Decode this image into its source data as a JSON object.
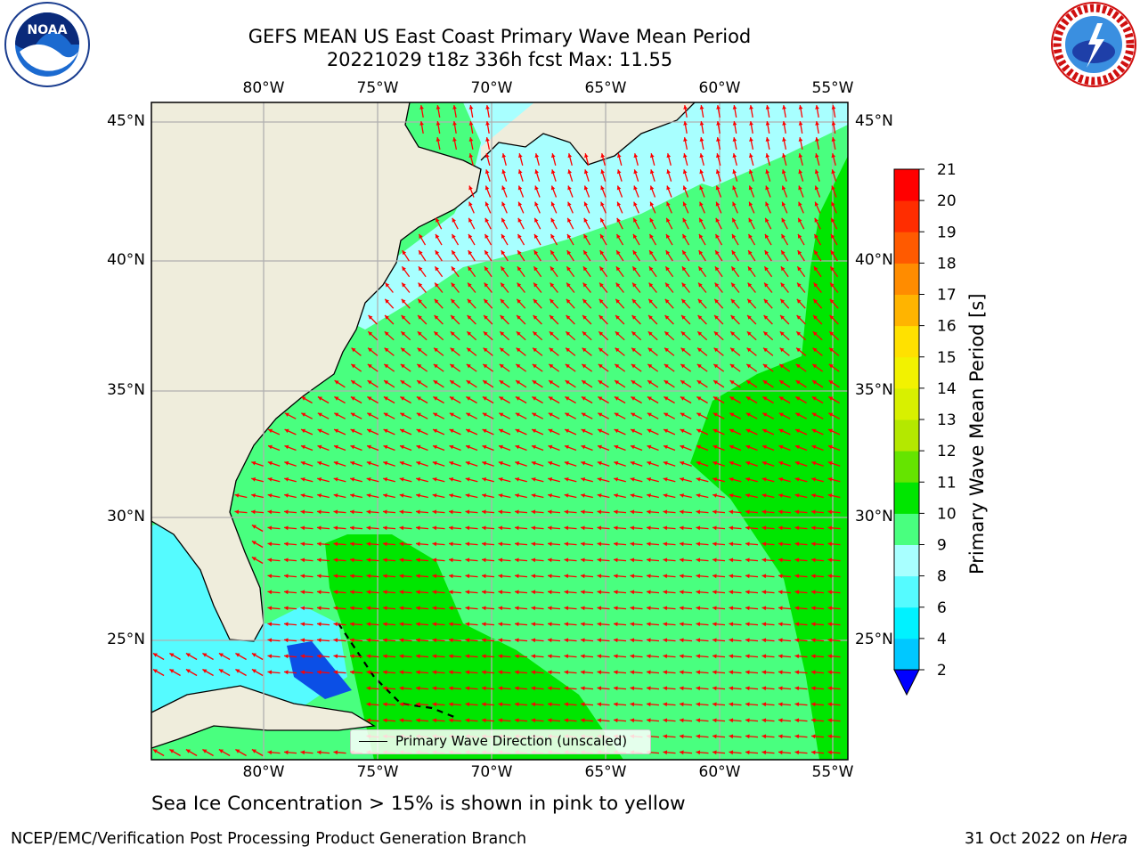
{
  "title_line1": "GEFS MEAN US East Coast Primary Wave Mean Period",
  "title_line2": "20221029 t18z 336h fcst   Max: 11.55",
  "lon_labels": [
    "80°W",
    "75°W",
    "70°W",
    "65°W",
    "60°W",
    "55°W"
  ],
  "lat_labels": [
    "45°N",
    "40°N",
    "35°N",
    "30°N",
    "25°N"
  ],
  "colorbar": {
    "label": "Primary Wave Mean Period [s]",
    "ticks": [
      "2",
      "4",
      "6",
      "8",
      "9",
      "10",
      "11",
      "12",
      "13",
      "14",
      "15",
      "16",
      "17",
      "18",
      "19",
      "20",
      "21"
    ],
    "colors": [
      "#0b4fe6",
      "#00c8ff",
      "#00f2ff",
      "#55fbff",
      "#a8ffff",
      "#49ff7f",
      "#00e600",
      "#65e400",
      "#b4e800",
      "#d8f000",
      "#f2f200",
      "#ffe100",
      "#ffb400",
      "#ff8c00",
      "#ff5a00",
      "#ff2d00",
      "#ff0000"
    ],
    "underflow_color": "#0000ff"
  },
  "legend": {
    "label": "Primary Wave Direction (unscaled)"
  },
  "caption": "Sea Ice Concentration > 15% is shown in pink to yellow",
  "footer_left": "NCEP/EMC/Verification Post Processing Product Generation Branch",
  "footer_date": "31 Oct 2022 on",
  "footer_machine": "Hera",
  "colors": {
    "land": "#efeddc",
    "grid": "#b0b0b0",
    "arrow": "#ff0000",
    "coast": "#000000",
    "period_8_9": "#a8ffff",
    "period_9_10": "#49ff7f",
    "period_10_11": "#00e600",
    "period_6_8": "#55fbff"
  },
  "logos": {
    "left_icon": "noaa-logo",
    "right_icon": "national-weather-service-logo"
  }
}
